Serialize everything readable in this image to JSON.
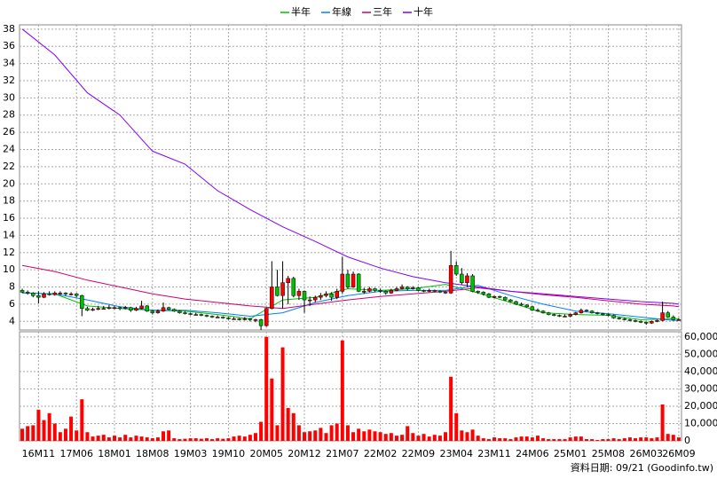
{
  "chart_data": {
    "type": "candlestick",
    "legend": "top",
    "footnote": "資料日期: 09/21  (Goodinfo.tw)",
    "categories": [
      null,
      null,
      null,
      "16M11",
      null,
      null,
      null,
      null,
      null,
      null,
      "17M06",
      null,
      null,
      null,
      null,
      null,
      null,
      "18M01",
      null,
      null,
      null,
      null,
      null,
      null,
      "18M08",
      null,
      null,
      null,
      null,
      null,
      null,
      "19M03",
      null,
      null,
      null,
      null,
      null,
      null,
      "19M10",
      null,
      null,
      null,
      null,
      null,
      null,
      "20M05",
      null,
      null,
      null,
      null,
      null,
      null,
      "20M12",
      null,
      null,
      null,
      null,
      null,
      null,
      "21M07",
      null,
      null,
      null,
      null,
      null,
      null,
      "22M02",
      null,
      null,
      null,
      null,
      null,
      null,
      "22M09",
      null,
      null,
      null,
      null,
      null,
      null,
      "23M04",
      null,
      null,
      null,
      null,
      null,
      null,
      "23M11",
      null,
      null,
      null,
      null,
      null,
      null,
      "24M06",
      null,
      null,
      null,
      null,
      null,
      null,
      "25M01",
      null,
      null,
      null,
      null,
      null,
      null,
      "25M08",
      null,
      null,
      null,
      null,
      null,
      null,
      "26M03",
      null,
      null,
      null,
      null,
      null,
      "26M09"
    ],
    "up_color": "#ff0000",
    "down_color": "#00c000",
    "ohlc": [
      [
        7.6,
        7.8,
        7.3,
        7.4
      ],
      [
        7.4,
        7.6,
        7.1,
        7.3
      ],
      [
        7.3,
        7.4,
        6.8,
        7.0
      ],
      [
        7.0,
        7.5,
        6.1,
        6.8
      ],
      [
        6.8,
        7.4,
        6.7,
        7.2
      ],
      [
        7.2,
        7.5,
        7.0,
        7.1
      ],
      [
        7.1,
        7.5,
        7.0,
        7.3
      ],
      [
        7.3,
        7.5,
        7.1,
        7.3
      ],
      [
        7.3,
        7.4,
        7.0,
        7.2
      ],
      [
        7.2,
        7.4,
        7.0,
        7.2
      ],
      [
        7.2,
        7.3,
        6.8,
        7.0
      ],
      [
        7.0,
        7.1,
        4.6,
        5.5
      ],
      [
        5.5,
        5.7,
        5.2,
        5.3
      ],
      [
        5.3,
        5.6,
        5.2,
        5.4
      ],
      [
        5.4,
        5.8,
        5.3,
        5.5
      ],
      [
        5.5,
        5.8,
        5.4,
        5.5
      ],
      [
        5.5,
        5.9,
        5.4,
        5.6
      ],
      [
        5.6,
        5.8,
        5.4,
        5.6
      ],
      [
        5.6,
        5.7,
        5.3,
        5.5
      ],
      [
        5.5,
        5.8,
        5.4,
        5.6
      ],
      [
        5.6,
        5.7,
        5.1,
        5.3
      ],
      [
        5.3,
        5.7,
        5.2,
        5.5
      ],
      [
        5.5,
        6.4,
        5.4,
        5.8
      ],
      [
        5.8,
        5.9,
        5.1,
        5.2
      ],
      [
        5.2,
        5.3,
        4.8,
        5.0
      ],
      [
        5.0,
        5.4,
        4.9,
        5.2
      ],
      [
        5.2,
        6.2,
        5.1,
        5.6
      ],
      [
        5.6,
        5.7,
        5.3,
        5.4
      ],
      [
        5.4,
        5.5,
        5.1,
        5.2
      ],
      [
        5.2,
        5.3,
        4.9,
        5.0
      ],
      [
        5.0,
        5.2,
        4.8,
        4.9
      ],
      [
        4.9,
        5.0,
        4.7,
        4.8
      ],
      [
        4.8,
        5.0,
        4.7,
        4.8
      ],
      [
        4.8,
        4.9,
        4.6,
        4.7
      ],
      [
        4.7,
        4.8,
        4.5,
        4.6
      ],
      [
        4.6,
        4.7,
        4.4,
        4.5
      ],
      [
        4.5,
        4.7,
        4.4,
        4.5
      ],
      [
        4.5,
        4.6,
        4.3,
        4.4
      ],
      [
        4.4,
        4.5,
        4.2,
        4.3
      ],
      [
        4.3,
        4.5,
        4.2,
        4.3
      ],
      [
        4.3,
        4.4,
        4.1,
        4.2
      ],
      [
        4.2,
        4.5,
        4.1,
        4.3
      ],
      [
        4.3,
        4.4,
        4.0,
        4.2
      ],
      [
        4.2,
        4.3,
        3.9,
        4.2
      ],
      [
        4.2,
        4.3,
        3.0,
        3.5
      ],
      [
        3.5,
        5.6,
        3.4,
        5.5
      ],
      [
        5.5,
        11.0,
        5.4,
        8.0
      ],
      [
        8.0,
        10.0,
        6.9,
        7.0
      ],
      [
        7.0,
        11.0,
        5.5,
        8.5
      ],
      [
        8.5,
        9.3,
        6.0,
        9.0
      ],
      [
        9.0,
        9.2,
        6.8,
        7.0
      ],
      [
        7.0,
        7.8,
        6.5,
        7.5
      ],
      [
        7.5,
        7.6,
        5.0,
        6.5
      ],
      [
        6.5,
        6.9,
        5.8,
        6.5
      ],
      [
        6.5,
        7.0,
        6.2,
        6.8
      ],
      [
        6.8,
        7.3,
        6.5,
        7.0
      ],
      [
        7.0,
        7.5,
        6.8,
        7.2
      ],
      [
        7.2,
        7.4,
        6.4,
        6.8
      ],
      [
        6.8,
        7.8,
        6.6,
        7.5
      ],
      [
        7.5,
        11.5,
        7.2,
        9.5
      ],
      [
        9.5,
        10.0,
        7.8,
        8.0
      ],
      [
        8.0,
        9.8,
        7.9,
        9.5
      ],
      [
        9.5,
        9.6,
        7.4,
        7.5
      ],
      [
        7.5,
        7.9,
        7.2,
        7.5
      ],
      [
        7.5,
        8.0,
        7.4,
        7.8
      ],
      [
        7.8,
        7.9,
        7.4,
        7.6
      ],
      [
        7.6,
        7.8,
        7.3,
        7.5
      ],
      [
        7.5,
        7.6,
        7.1,
        7.3
      ],
      [
        7.3,
        7.8,
        7.2,
        7.6
      ],
      [
        7.6,
        8.0,
        7.5,
        7.8
      ],
      [
        7.8,
        8.3,
        7.7,
        8.0
      ],
      [
        8.0,
        8.1,
        7.6,
        7.8
      ],
      [
        7.8,
        8.1,
        7.7,
        7.9
      ],
      [
        7.9,
        8.0,
        7.5,
        7.6
      ],
      [
        7.6,
        7.7,
        7.4,
        7.5
      ],
      [
        7.5,
        7.8,
        7.4,
        7.6
      ],
      [
        7.6,
        7.7,
        7.4,
        7.5
      ],
      [
        7.5,
        7.6,
        7.3,
        7.4
      ],
      [
        7.4,
        7.5,
        7.2,
        7.3
      ],
      [
        7.3,
        12.2,
        7.2,
        10.5
      ],
      [
        10.5,
        11.0,
        9.3,
        9.5
      ],
      [
        9.5,
        10.2,
        8.3,
        8.5
      ],
      [
        8.5,
        9.6,
        8.0,
        9.3
      ],
      [
        9.3,
        9.5,
        7.4,
        7.5
      ],
      [
        7.5,
        7.6,
        7.2,
        7.4
      ],
      [
        7.4,
        7.5,
        7.0,
        7.2
      ],
      [
        7.2,
        7.3,
        6.7,
        6.8
      ],
      [
        6.8,
        7.0,
        6.7,
        6.9
      ],
      [
        6.9,
        7.0,
        6.7,
        6.8
      ],
      [
        6.8,
        6.9,
        6.4,
        6.5
      ],
      [
        6.5,
        6.6,
        6.2,
        6.3
      ],
      [
        6.3,
        6.4,
        5.9,
        6.0
      ],
      [
        6.0,
        6.2,
        5.8,
        5.9
      ],
      [
        5.9,
        6.0,
        5.6,
        5.7
      ],
      [
        5.7,
        5.8,
        5.2,
        5.3
      ],
      [
        5.3,
        5.5,
        5.1,
        5.2
      ],
      [
        5.2,
        5.3,
        4.9,
        5.0
      ],
      [
        5.0,
        5.1,
        4.7,
        4.8
      ],
      [
        4.8,
        4.9,
        4.6,
        4.7
      ],
      [
        4.7,
        4.8,
        4.5,
        4.6
      ],
      [
        4.6,
        4.8,
        4.5,
        4.6
      ],
      [
        4.6,
        4.9,
        4.5,
        4.8
      ],
      [
        4.8,
        5.1,
        4.7,
        5.0
      ],
      [
        5.0,
        5.5,
        4.9,
        5.3
      ],
      [
        5.3,
        5.4,
        5.1,
        5.2
      ],
      [
        5.2,
        5.3,
        4.9,
        5.0
      ],
      [
        5.0,
        5.1,
        4.8,
        4.9
      ],
      [
        4.9,
        5.0,
        4.7,
        4.8
      ],
      [
        4.8,
        4.9,
        4.6,
        4.7
      ],
      [
        4.7,
        4.8,
        4.3,
        4.4
      ],
      [
        4.4,
        4.5,
        4.2,
        4.3
      ],
      [
        4.3,
        4.4,
        4.1,
        4.2
      ],
      [
        4.2,
        4.3,
        4.0,
        4.1
      ],
      [
        4.1,
        4.2,
        3.9,
        4.0
      ],
      [
        4.0,
        4.1,
        3.8,
        3.9
      ],
      [
        3.9,
        4.0,
        3.6,
        3.8
      ],
      [
        3.8,
        4.1,
        3.7,
        4.0
      ],
      [
        4.0,
        4.2,
        3.9,
        4.1
      ],
      [
        4.1,
        6.3,
        4.0,
        5.0
      ],
      [
        5.0,
        5.2,
        4.4,
        4.5
      ],
      [
        4.5,
        4.7,
        4.1,
        4.2
      ],
      [
        4.2,
        4.4,
        4.1,
        4.2
      ]
    ],
    "x": [
      0,
      6,
      12,
      18,
      24,
      30,
      36,
      42,
      48,
      54,
      60,
      66,
      72,
      78,
      84,
      90,
      96,
      102,
      108,
      114,
      120,
      121
    ],
    "series": [
      {
        "name": "半年",
        "color": "#00c000",
        "values": [
          7.3,
          7.2,
          5.8,
          5.5,
          5.3,
          5.2,
          4.8,
          4.3,
          6.5,
          6.8,
          7.8,
          7.6,
          7.8,
          8.3,
          7.3,
          6.2,
          5.0,
          4.8,
          4.7,
          4.2,
          4.3,
          4.3
        ]
      },
      {
        "name": "年線",
        "color": "#0080ff",
        "values": [
          7.3,
          7.2,
          6.5,
          5.7,
          5.3,
          5.3,
          5.0,
          4.6,
          5.0,
          6.2,
          7.0,
          7.5,
          7.6,
          7.6,
          8.2,
          7.0,
          6.0,
          5.2,
          4.9,
          4.5,
          4.1,
          4.1
        ]
      },
      {
        "name": "三年",
        "color": "#d0006f",
        "values": [
          10.5,
          9.8,
          8.8,
          8.0,
          7.2,
          6.6,
          6.2,
          5.8,
          5.5,
          6.0,
          6.5,
          6.9,
          7.2,
          7.5,
          7.9,
          7.5,
          7.1,
          6.8,
          6.4,
          6.0,
          5.8,
          5.7
        ]
      },
      {
        "name": "十年",
        "color": "#8000ff",
        "values": [
          38,
          35,
          30.6,
          28,
          23.8,
          22.3,
          19.2,
          17,
          15,
          13.3,
          11.5,
          10.2,
          9.2,
          8.5,
          8.0,
          7.5,
          7.2,
          6.9,
          6.6,
          6.3,
          6.1,
          6.0
        ]
      }
    ],
    "ylim": [
      3,
      38.5
    ],
    "yticks": [
      4,
      6,
      8,
      10,
      12,
      14,
      16,
      18,
      20,
      22,
      24,
      26,
      28,
      30,
      32,
      34,
      36,
      38
    ],
    "grid": true,
    "volume": {
      "color": "#ff0000",
      "ylim": [
        0,
        63000
      ],
      "yticks": [
        0,
        {
          "value": 10000,
          "label": "10,000"
        },
        {
          "value": 20000,
          "label": "20,000"
        },
        {
          "value": 30000,
          "label": "30,000"
        },
        {
          "value": 40000,
          "label": "40,000"
        },
        {
          "value": 50000,
          "label": "50,000"
        },
        {
          "value": 60000,
          "label": "60,000"
        }
      ],
      "values": [
        7000,
        8500,
        9000,
        18000,
        12000,
        16000,
        10000,
        5000,
        7000,
        14000,
        6000,
        24000,
        5000,
        2500,
        3000,
        3500,
        2000,
        3000,
        2000,
        3500,
        2000,
        3000,
        2500,
        2000,
        1500,
        2000,
        5500,
        6000,
        1500,
        1000,
        1200,
        1500,
        1500,
        1200,
        1500,
        1000,
        1500,
        1200,
        1500,
        2500,
        3000,
        2500,
        3500,
        4500,
        11000,
        60000,
        36000,
        9000,
        54000,
        19000,
        16000,
        9000,
        5000,
        5500,
        6000,
        7500,
        4500,
        9000,
        10000,
        58000,
        9000,
        5000,
        7000,
        5500,
        6500,
        5500,
        5000,
        4000,
        4500,
        3000,
        3500,
        8500,
        4500,
        3000,
        4000,
        2500,
        3500,
        3000,
        5000,
        37000,
        16000,
        6000,
        5000,
        6500,
        3000,
        1500,
        1000,
        2000,
        1500,
        1500,
        1000,
        2000,
        2500,
        2500,
        2000,
        3000,
        1500,
        1000,
        1000,
        1000,
        1000,
        2000,
        2500,
        2500,
        1000,
        1000,
        500,
        1000,
        1000,
        1500,
        1000,
        1500,
        2000,
        1500,
        2000,
        2000,
        1500,
        2000,
        21000,
        4000,
        3500,
        2000
      ]
    }
  }
}
